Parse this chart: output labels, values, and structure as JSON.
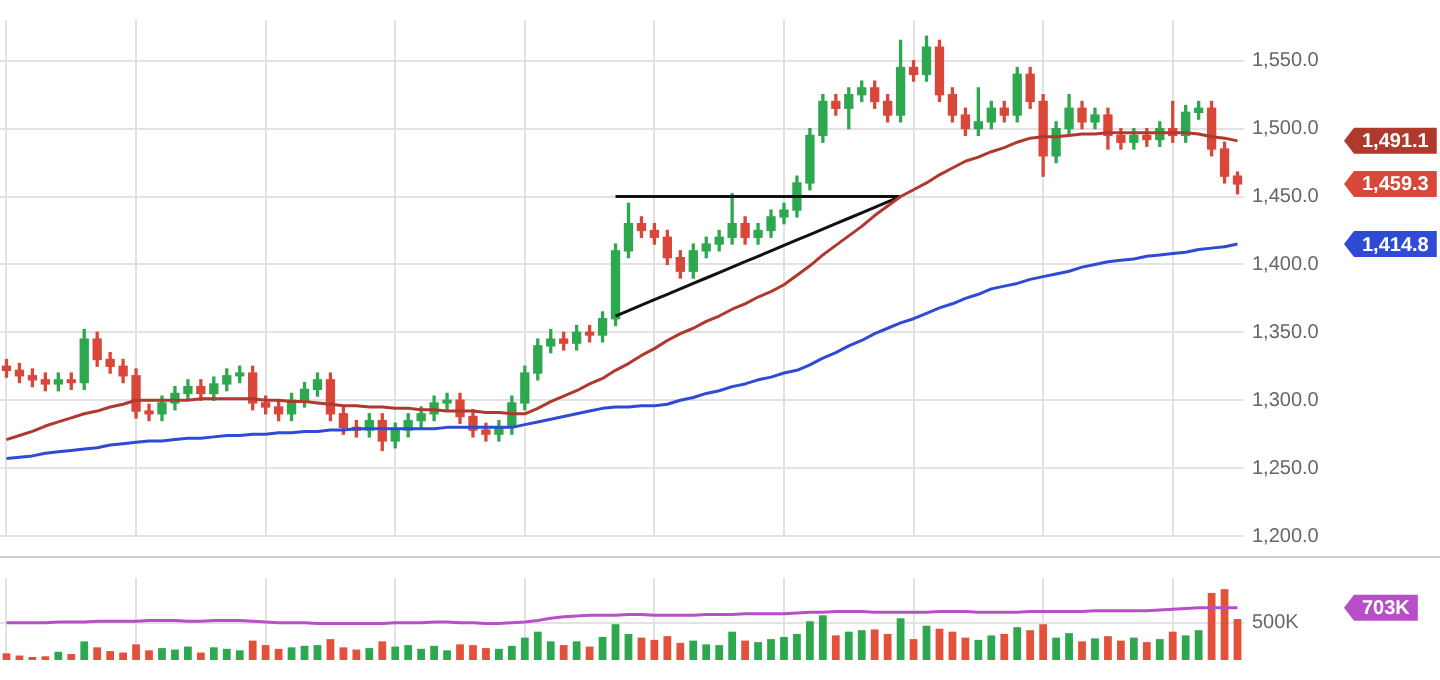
{
  "chart_data": [
    {
      "type": "candlestick",
      "categories": [
        null,
        null,
        null,
        null,
        null,
        null,
        null,
        null,
        null,
        null,
        null,
        null,
        null,
        null,
        null,
        null,
        null,
        null,
        null,
        null,
        null,
        null,
        null,
        null,
        null,
        null,
        null,
        null,
        null,
        null,
        null,
        null,
        null,
        null,
        null,
        null,
        null,
        null,
        null,
        null,
        null,
        null,
        null,
        null,
        null,
        null,
        null,
        null,
        null,
        null,
        null,
        null,
        null,
        null,
        null,
        null,
        null,
        null,
        null,
        null,
        null,
        null,
        null,
        null,
        null,
        null,
        null,
        null,
        null,
        null,
        null,
        null,
        null,
        null,
        null,
        null,
        null,
        null,
        null,
        null,
        null,
        null,
        null,
        null,
        null,
        null,
        null,
        null,
        null,
        null,
        null,
        null,
        null,
        null,
        null,
        null
      ],
      "ohlc": [
        [
          1325,
          1330,
          1317,
          1322
        ],
        [
          1322,
          1327,
          1313,
          1318
        ],
        [
          1318,
          1323,
          1310,
          1315
        ],
        [
          1315,
          1320,
          1307,
          1312
        ],
        [
          1312,
          1320,
          1307,
          1315
        ],
        [
          1315,
          1320,
          1308,
          1313
        ],
        [
          1313,
          1352,
          1308,
          1345
        ],
        [
          1345,
          1350,
          1325,
          1330
        ],
        [
          1330,
          1335,
          1320,
          1325
        ],
        [
          1325,
          1330,
          1313,
          1318
        ],
        [
          1318,
          1323,
          1287,
          1292
        ],
        [
          1292,
          1297,
          1285,
          1290
        ],
        [
          1290,
          1303,
          1285,
          1298
        ],
        [
          1298,
          1310,
          1293,
          1305
        ],
        [
          1305,
          1315,
          1300,
          1310
        ],
        [
          1310,
          1315,
          1300,
          1305
        ],
        [
          1305,
          1317,
          1300,
          1312
        ],
        [
          1312,
          1323,
          1307,
          1318
        ],
        [
          1318,
          1325,
          1313,
          1320
        ],
        [
          1320,
          1325,
          1293,
          1298
        ],
        [
          1298,
          1303,
          1290,
          1295
        ],
        [
          1295,
          1300,
          1285,
          1290
        ],
        [
          1290,
          1305,
          1285,
          1300
        ],
        [
          1300,
          1313,
          1295,
          1308
        ],
        [
          1308,
          1320,
          1303,
          1315
        ],
        [
          1315,
          1320,
          1285,
          1290
        ],
        [
          1290,
          1295,
          1275,
          1280
        ],
        [
          1280,
          1285,
          1273,
          1278
        ],
        [
          1278,
          1290,
          1273,
          1285
        ],
        [
          1285,
          1290,
          1263,
          1270
        ],
        [
          1270,
          1283,
          1265,
          1278
        ],
        [
          1278,
          1290,
          1273,
          1285
        ],
        [
          1285,
          1295,
          1280,
          1290
        ],
        [
          1290,
          1303,
          1285,
          1298
        ],
        [
          1298,
          1305,
          1293,
          1300
        ],
        [
          1300,
          1305,
          1283,
          1288
        ],
        [
          1288,
          1293,
          1273,
          1278
        ],
        [
          1278,
          1283,
          1270,
          1275
        ],
        [
          1275,
          1285,
          1270,
          1280
        ],
        [
          1280,
          1303,
          1275,
          1298
        ],
        [
          1298,
          1325,
          1293,
          1320
        ],
        [
          1320,
          1345,
          1315,
          1340
        ],
        [
          1340,
          1352,
          1335,
          1345
        ],
        [
          1345,
          1350,
          1337,
          1342
        ],
        [
          1342,
          1355,
          1337,
          1350
        ],
        [
          1350,
          1355,
          1343,
          1348
        ],
        [
          1348,
          1365,
          1343,
          1360
        ],
        [
          1360,
          1415,
          1355,
          1410
        ],
        [
          1410,
          1445,
          1405,
          1430
        ],
        [
          1430,
          1435,
          1420,
          1425
        ],
        [
          1425,
          1430,
          1415,
          1420
        ],
        [
          1420,
          1425,
          1400,
          1405
        ],
        [
          1405,
          1410,
          1390,
          1395
        ],
        [
          1395,
          1415,
          1390,
          1410
        ],
        [
          1410,
          1420,
          1405,
          1415
        ],
        [
          1415,
          1425,
          1410,
          1420
        ],
        [
          1420,
          1452,
          1415,
          1430
        ],
        [
          1430,
          1435,
          1415,
          1420
        ],
        [
          1420,
          1430,
          1415,
          1425
        ],
        [
          1425,
          1440,
          1420,
          1435
        ],
        [
          1435,
          1445,
          1430,
          1440
        ],
        [
          1440,
          1465,
          1435,
          1460
        ],
        [
          1460,
          1500,
          1455,
          1495
        ],
        [
          1495,
          1525,
          1490,
          1520
        ],
        [
          1520,
          1525,
          1510,
          1515
        ],
        [
          1515,
          1530,
          1500,
          1525
        ],
        [
          1525,
          1535,
          1520,
          1530
        ],
        [
          1530,
          1535,
          1515,
          1520
        ],
        [
          1520,
          1525,
          1505,
          1510
        ],
        [
          1510,
          1565,
          1505,
          1545
        ],
        [
          1545,
          1550,
          1535,
          1540
        ],
        [
          1540,
          1568,
          1535,
          1560
        ],
        [
          1560,
          1565,
          1520,
          1525
        ],
        [
          1525,
          1530,
          1505,
          1510
        ],
        [
          1510,
          1515,
          1495,
          1500
        ],
        [
          1500,
          1530,
          1495,
          1505
        ],
        [
          1505,
          1520,
          1500,
          1515
        ],
        [
          1515,
          1520,
          1505,
          1510
        ],
        [
          1510,
          1545,
          1505,
          1540
        ],
        [
          1540,
          1545,
          1515,
          1520
        ],
        [
          1520,
          1525,
          1465,
          1480
        ],
        [
          1480,
          1505,
          1475,
          1500
        ],
        [
          1500,
          1525,
          1495,
          1515
        ],
        [
          1515,
          1520,
          1500,
          1505
        ],
        [
          1505,
          1515,
          1500,
          1510
        ],
        [
          1510,
          1515,
          1485,
          1495
        ],
        [
          1495,
          1500,
          1485,
          1490
        ],
        [
          1490,
          1500,
          1485,
          1495
        ],
        [
          1495,
          1500,
          1487,
          1492
        ],
        [
          1492,
          1505,
          1487,
          1500
        ],
        [
          1500,
          1520,
          1490,
          1495
        ],
        [
          1495,
          1517,
          1490,
          1512
        ],
        [
          1512,
          1520,
          1507,
          1515
        ],
        [
          1515,
          1520,
          1480,
          1485
        ],
        [
          1485,
          1490,
          1460,
          1465
        ],
        [
          1465,
          1468,
          1452,
          1459.3
        ]
      ],
      "series": [
        {
          "type": "line",
          "color": "#b0392e",
          "values": [
            1271,
            1274,
            1277,
            1281,
            1284,
            1287,
            1290,
            1292,
            1295,
            1297,
            1300,
            1300,
            1300,
            1300,
            1300,
            1301,
            1301,
            1301,
            1301,
            1301,
            1300,
            1300,
            1299,
            1299,
            1298,
            1297,
            1296,
            1296,
            1295,
            1295,
            1294,
            1294,
            1293,
            1293,
            1292,
            1292,
            1292,
            1291,
            1291,
            1290,
            1290,
            1294,
            1299,
            1303,
            1307,
            1312,
            1316,
            1322,
            1327,
            1333,
            1338,
            1344,
            1349,
            1353,
            1358,
            1362,
            1367,
            1371,
            1376,
            1380,
            1385,
            1392,
            1399,
            1407,
            1414,
            1421,
            1428,
            1436,
            1443,
            1450,
            1455,
            1460,
            1466,
            1471,
            1476,
            1479,
            1483,
            1486,
            1490,
            1493,
            1494,
            1494,
            1495,
            1496,
            1496,
            1497,
            1497,
            1497,
            1497,
            1497,
            1497,
            1497,
            1496,
            1494,
            1493,
            1491
          ]
        },
        {
          "type": "line",
          "color": "#2f4bd6",
          "values": [
            1257,
            1258,
            1259,
            1261,
            1262,
            1263,
            1264,
            1265,
            1267,
            1268,
            1269,
            1270,
            1270,
            1271,
            1272,
            1272,
            1273,
            1274,
            1274,
            1275,
            1275,
            1276,
            1276,
            1277,
            1277,
            1278,
            1278,
            1279,
            1279,
            1279,
            1279,
            1279,
            1279,
            1279,
            1280,
            1280,
            1280,
            1280,
            1280,
            1280,
            1282,
            1284,
            1286,
            1288,
            1290,
            1292,
            1294,
            1295,
            1295,
            1296,
            1296,
            1297,
            1300,
            1302,
            1305,
            1307,
            1310,
            1312,
            1315,
            1317,
            1320,
            1322,
            1326,
            1331,
            1335,
            1340,
            1344,
            1349,
            1353,
            1357,
            1360,
            1364,
            1368,
            1371,
            1375,
            1378,
            1382,
            1384,
            1386,
            1389,
            1391,
            1393,
            1395,
            1398,
            1400,
            1402,
            1403,
            1404,
            1406,
            1407,
            1408,
            1409,
            1411,
            1412,
            1413,
            1415
          ]
        },
        {
          "type": "line",
          "color": "#111111",
          "values": [
            null,
            null,
            null,
            null,
            null,
            null,
            null,
            null,
            null,
            null,
            null,
            null,
            null,
            null,
            null,
            null,
            null,
            null,
            null,
            null,
            null,
            null,
            null,
            null,
            null,
            null,
            null,
            null,
            null,
            null,
            null,
            null,
            null,
            null,
            null,
            null,
            null,
            null,
            null,
            null,
            null,
            null,
            null,
            null,
            null,
            null,
            null,
            1450,
            1450,
            1450,
            1450,
            1450,
            1450,
            1450,
            1450,
            1450,
            1450,
            1450,
            1450,
            1450,
            1450,
            1450,
            1450,
            1450,
            1450,
            1450,
            1450,
            1450,
            1450,
            1450,
            null,
            null,
            null,
            null,
            null,
            null,
            null,
            null,
            null,
            null,
            null,
            null,
            null,
            null,
            null,
            null,
            null,
            null,
            null,
            null,
            null,
            null,
            null,
            null,
            null,
            null
          ]
        },
        {
          "type": "line",
          "color": "#111111",
          "values": [
            null,
            null,
            null,
            null,
            null,
            null,
            null,
            null,
            null,
            null,
            null,
            null,
            null,
            null,
            null,
            null,
            null,
            null,
            null,
            null,
            null,
            null,
            null,
            null,
            null,
            null,
            null,
            null,
            null,
            null,
            null,
            null,
            null,
            null,
            null,
            null,
            null,
            null,
            null,
            null,
            null,
            null,
            null,
            null,
            null,
            null,
            null,
            1362,
            1366,
            1370,
            1374,
            1378,
            1382,
            1386,
            1390,
            1394,
            1398,
            1402,
            1406,
            1410,
            1414,
            1418,
            1422,
            1426,
            1430,
            1434,
            1438,
            1442,
            1446,
            1450,
            null,
            null,
            null,
            null,
            null,
            null,
            null,
            null,
            null,
            null,
            null,
            null,
            null,
            null,
            null,
            null,
            null,
            null,
            null,
            null,
            null,
            null,
            null,
            null,
            null,
            null
          ]
        }
      ],
      "ylim": [
        1200,
        1580
      ],
      "yticks": [
        {
          "value": 1200,
          "label": "1,200.0"
        },
        {
          "value": 1250,
          "label": "1,250.0"
        },
        {
          "value": 1300,
          "label": "1,300.0"
        },
        {
          "value": 1350,
          "label": "1,350.0"
        },
        {
          "value": 1400,
          "label": "1,400.0"
        },
        {
          "value": 1450,
          "label": "1,450.0"
        },
        {
          "value": 1500,
          "label": "1,500.0"
        },
        {
          "value": 1550,
          "label": "1,550.0"
        }
      ],
      "tick_labels": "y",
      "grid": true,
      "annotations": [
        "1,491.1",
        "1,459.3",
        "1,414.8"
      ]
    },
    {
      "type": "bar",
      "categories": [
        null,
        null,
        null,
        null,
        null,
        null,
        null,
        null,
        null,
        null,
        null,
        null,
        null,
        null,
        null,
        null,
        null,
        null,
        null,
        null,
        null,
        null,
        null,
        null,
        null,
        null,
        null,
        null,
        null,
        null,
        null,
        null,
        null,
        null,
        null,
        null,
        null,
        null,
        null,
        null,
        null,
        null,
        null,
        null,
        null,
        null,
        null,
        null,
        null,
        null,
        null,
        null,
        null,
        null,
        null,
        null,
        null,
        null,
        null,
        null,
        null,
        null,
        null,
        null,
        null,
        null,
        null,
        null,
        null,
        null,
        null,
        null,
        null,
        null,
        null,
        null,
        null,
        null,
        null,
        null,
        null,
        null,
        null,
        null,
        null,
        null,
        null,
        null,
        null,
        null,
        null,
        null,
        null,
        null,
        null,
        null
      ],
      "series": [
        {
          "type": "bar",
          "values": [
            90000,
            60000,
            40000,
            50000,
            110000,
            80000,
            250000,
            170000,
            120000,
            100000,
            210000,
            130000,
            160000,
            140000,
            180000,
            100000,
            170000,
            150000,
            130000,
            260000,
            200000,
            150000,
            170000,
            190000,
            200000,
            280000,
            170000,
            140000,
            160000,
            250000,
            180000,
            200000,
            150000,
            190000,
            130000,
            210000,
            200000,
            160000,
            150000,
            190000,
            300000,
            380000,
            250000,
            200000,
            250000,
            180000,
            310000,
            480000,
            350000,
            300000,
            270000,
            320000,
            230000,
            260000,
            210000,
            200000,
            380000,
            260000,
            240000,
            280000,
            310000,
            350000,
            520000,
            600000,
            330000,
            380000,
            400000,
            410000,
            350000,
            560000,
            280000,
            460000,
            420000,
            380000,
            300000,
            270000,
            330000,
            350000,
            440000,
            400000,
            480000,
            300000,
            360000,
            250000,
            290000,
            320000,
            260000,
            300000,
            240000,
            280000,
            380000,
            330000,
            400000,
            900000,
            950000,
            550000
          ],
          "colors": [
            "#e4513b",
            "#e4513b",
            "#e4513b",
            "#e4513b",
            "#2ea84f",
            "#e4513b",
            "#2ea84f",
            "#e4513b",
            "#e4513b",
            "#e4513b",
            "#e4513b",
            "#e4513b",
            "#2ea84f",
            "#2ea84f",
            "#2ea84f",
            "#e4513b",
            "#2ea84f",
            "#2ea84f",
            "#2ea84f",
            "#e4513b",
            "#e4513b",
            "#e4513b",
            "#2ea84f",
            "#2ea84f",
            "#2ea84f",
            "#e4513b",
            "#e4513b",
            "#e4513b",
            "#2ea84f",
            "#e4513b",
            "#2ea84f",
            "#2ea84f",
            "#2ea84f",
            "#2ea84f",
            "#2ea84f",
            "#e4513b",
            "#e4513b",
            "#e4513b",
            "#2ea84f",
            "#2ea84f",
            "#2ea84f",
            "#2ea84f",
            "#2ea84f",
            "#e4513b",
            "#2ea84f",
            "#e4513b",
            "#2ea84f",
            "#2ea84f",
            "#2ea84f",
            "#e4513b",
            "#e4513b",
            "#e4513b",
            "#e4513b",
            "#2ea84f",
            "#2ea84f",
            "#2ea84f",
            "#2ea84f",
            "#e4513b",
            "#2ea84f",
            "#2ea84f",
            "#2ea84f",
            "#2ea84f",
            "#2ea84f",
            "#2ea84f",
            "#e4513b",
            "#2ea84f",
            "#2ea84f",
            "#e4513b",
            "#e4513b",
            "#2ea84f",
            "#e4513b",
            "#2ea84f",
            "#e4513b",
            "#e4513b",
            "#e4513b",
            "#2ea84f",
            "#2ea84f",
            "#e4513b",
            "#2ea84f",
            "#e4513b",
            "#e4513b",
            "#2ea84f",
            "#2ea84f",
            "#e4513b",
            "#2ea84f",
            "#e4513b",
            "#e4513b",
            "#2ea84f",
            "#e4513b",
            "#2ea84f",
            "#e4513b",
            "#2ea84f",
            "#2ea84f",
            "#e4513b",
            "#e4513b",
            "#e4513b"
          ]
        },
        {
          "type": "line",
          "color": "#b84fc9",
          "values": [
            500000,
            500000,
            500000,
            500000,
            510000,
            510000,
            510000,
            520000,
            520000,
            520000,
            520000,
            530000,
            530000,
            530000,
            520000,
            520000,
            530000,
            530000,
            530000,
            520000,
            510000,
            500000,
            500000,
            500000,
            490000,
            490000,
            490000,
            490000,
            490000,
            490000,
            500000,
            500000,
            500000,
            510000,
            510000,
            500000,
            500000,
            490000,
            490000,
            500000,
            510000,
            530000,
            560000,
            580000,
            590000,
            600000,
            600000,
            600000,
            610000,
            610000,
            600000,
            600000,
            600000,
            600000,
            610000,
            610000,
            610000,
            620000,
            620000,
            620000,
            620000,
            630000,
            640000,
            640000,
            650000,
            650000,
            650000,
            640000,
            640000,
            640000,
            640000,
            640000,
            650000,
            650000,
            650000,
            640000,
            640000,
            640000,
            640000,
            650000,
            650000,
            650000,
            650000,
            650000,
            660000,
            660000,
            660000,
            660000,
            660000,
            670000,
            680000,
            690000,
            700000,
            700000,
            700000,
            700000
          ]
        }
      ],
      "ylim": [
        0,
        1100000
      ],
      "yticks": [
        {
          "value": 500000,
          "label": "500K"
        }
      ],
      "tick_labels": "y",
      "grid": true,
      "annotations": [
        "703K"
      ]
    }
  ]
}
